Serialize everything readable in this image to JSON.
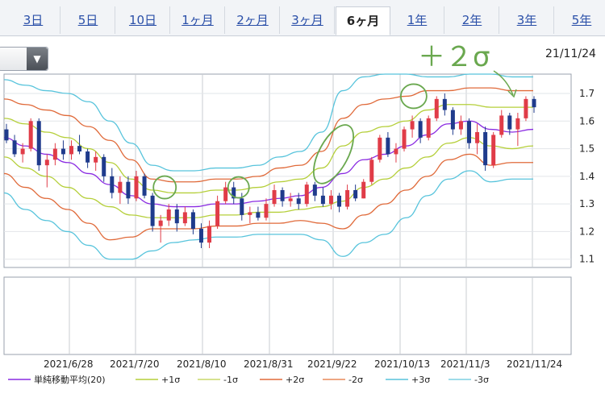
{
  "tabs": [
    {
      "label": "3日",
      "active": false
    },
    {
      "label": "5日",
      "active": false
    },
    {
      "label": "10日",
      "active": false
    },
    {
      "label": "1ヶ月",
      "active": false
    },
    {
      "label": "2ヶ月",
      "active": false
    },
    {
      "label": "3ヶ月",
      "active": false
    },
    {
      "label": "6ヶ月",
      "active": true
    },
    {
      "label": "1年",
      "active": false
    },
    {
      "label": "2年",
      "active": false
    },
    {
      "label": "3年",
      "active": false
    },
    {
      "label": "5年",
      "active": false
    }
  ],
  "header": {
    "date": "21/11/24"
  },
  "annotation": {
    "text": "＋２σ",
    "color": "#6aa84f"
  },
  "chart_data": {
    "type": "line",
    "description": "6-month daily candlestick price chart with 20-day SMA and Bollinger bands (±1σ, ±2σ, ±3σ)",
    "ylim": [
      1.07,
      1.77
    ],
    "y_ticks": [
      1.1,
      1.2,
      1.3,
      1.4,
      1.5,
      1.6,
      1.7
    ],
    "x_ticks": [
      "2021/6/28",
      "2021/7/20",
      "2021/8/10",
      "2021/8/31",
      "2021/9/22",
      "2021/10/13",
      "2021/11/3",
      "2021/11/24"
    ],
    "grid": true,
    "legend": "bottom",
    "colors": {
      "sma": "#8a2be2",
      "sigma1": "#b5cf3a",
      "sigma2": "#e06a3a",
      "sigma3": "#58c4dc",
      "up": "#e03c48",
      "down": "#1f3b8c",
      "highlight": "#6aa84f"
    },
    "series": [
      {
        "name": "単純移動平均(20)",
        "key": "sma",
        "values": [
          1.54,
          1.51,
          1.48,
          1.45,
          1.41,
          1.37,
          1.33,
          1.3,
          1.29,
          1.29,
          1.3,
          1.3,
          1.31,
          1.32,
          1.33,
          1.36,
          1.41,
          1.46,
          1.48,
          1.51,
          1.55,
          1.59,
          1.6,
          1.57,
          1.56,
          1.57
        ]
      },
      {
        "name": "+1σ",
        "key": "p1",
        "values": [
          1.61,
          1.59,
          1.56,
          1.54,
          1.5,
          1.45,
          1.39,
          1.35,
          1.34,
          1.34,
          1.35,
          1.35,
          1.36,
          1.38,
          1.39,
          1.43,
          1.51,
          1.56,
          1.58,
          1.6,
          1.64,
          1.66,
          1.66,
          1.65,
          1.65,
          1.65
        ]
      },
      {
        "name": "-1σ",
        "key": "m1",
        "values": [
          1.47,
          1.43,
          1.4,
          1.36,
          1.32,
          1.29,
          1.26,
          1.25,
          1.25,
          1.25,
          1.26,
          1.26,
          1.27,
          1.27,
          1.28,
          1.29,
          1.31,
          1.36,
          1.39,
          1.43,
          1.47,
          1.52,
          1.54,
          1.51,
          1.5,
          1.51
        ]
      },
      {
        "name": "+2σ",
        "key": "p2",
        "values": [
          1.68,
          1.66,
          1.64,
          1.62,
          1.58,
          1.53,
          1.46,
          1.39,
          1.38,
          1.38,
          1.39,
          1.39,
          1.4,
          1.43,
          1.44,
          1.49,
          1.61,
          1.66,
          1.68,
          1.69,
          1.71,
          1.71,
          1.72,
          1.72,
          1.71,
          1.71
        ]
      },
      {
        "name": "-2σ",
        "key": "m2",
        "values": [
          1.41,
          1.36,
          1.32,
          1.28,
          1.23,
          1.17,
          1.18,
          1.21,
          1.21,
          1.21,
          1.22,
          1.22,
          1.23,
          1.23,
          1.24,
          1.23,
          1.21,
          1.26,
          1.3,
          1.35,
          1.4,
          1.46,
          1.48,
          1.44,
          1.45,
          1.45
        ]
      },
      {
        "name": "+3σ",
        "key": "p3",
        "values": [
          1.75,
          1.73,
          1.71,
          1.7,
          1.67,
          1.6,
          1.52,
          1.44,
          1.42,
          1.42,
          1.43,
          1.43,
          1.44,
          1.47,
          1.49,
          1.56,
          1.71,
          1.76,
          1.77,
          1.77,
          1.76,
          1.76,
          1.77,
          1.77,
          1.76,
          1.76
        ]
      },
      {
        "name": "-3σ",
        "key": "m3",
        "values": [
          1.34,
          1.28,
          1.24,
          1.2,
          1.15,
          1.1,
          1.1,
          1.13,
          1.16,
          1.17,
          1.18,
          1.18,
          1.19,
          1.19,
          1.19,
          1.17,
          1.11,
          1.16,
          1.19,
          1.25,
          1.33,
          1.39,
          1.42,
          1.38,
          1.39,
          1.39
        ]
      }
    ],
    "candles": [
      {
        "o": 1.57,
        "h": 1.59,
        "l": 1.52,
        "c": 1.53
      },
      {
        "o": 1.53,
        "h": 1.55,
        "l": 1.47,
        "c": 1.48
      },
      {
        "o": 1.48,
        "h": 1.52,
        "l": 1.45,
        "c": 1.5
      },
      {
        "o": 1.5,
        "h": 1.61,
        "l": 1.49,
        "c": 1.6
      },
      {
        "o": 1.6,
        "h": 1.61,
        "l": 1.42,
        "c": 1.44
      },
      {
        "o": 1.44,
        "h": 1.48,
        "l": 1.36,
        "c": 1.46
      },
      {
        "o": 1.46,
        "h": 1.52,
        "l": 1.44,
        "c": 1.5
      },
      {
        "o": 1.5,
        "h": 1.53,
        "l": 1.46,
        "c": 1.48
      },
      {
        "o": 1.48,
        "h": 1.53,
        "l": 1.46,
        "c": 1.51
      },
      {
        "o": 1.51,
        "h": 1.55,
        "l": 1.48,
        "c": 1.49
      },
      {
        "o": 1.49,
        "h": 1.5,
        "l": 1.43,
        "c": 1.45
      },
      {
        "o": 1.45,
        "h": 1.49,
        "l": 1.42,
        "c": 1.47
      },
      {
        "o": 1.47,
        "h": 1.48,
        "l": 1.38,
        "c": 1.4
      },
      {
        "o": 1.4,
        "h": 1.43,
        "l": 1.32,
        "c": 1.34
      },
      {
        "o": 1.34,
        "h": 1.4,
        "l": 1.3,
        "c": 1.38
      },
      {
        "o": 1.38,
        "h": 1.4,
        "l": 1.3,
        "c": 1.32
      },
      {
        "o": 1.32,
        "h": 1.42,
        "l": 1.31,
        "c": 1.4
      },
      {
        "o": 1.4,
        "h": 1.41,
        "l": 1.32,
        "c": 1.33
      },
      {
        "o": 1.33,
        "h": 1.34,
        "l": 1.2,
        "c": 1.22
      },
      {
        "o": 1.22,
        "h": 1.26,
        "l": 1.16,
        "c": 1.24
      },
      {
        "o": 1.24,
        "h": 1.3,
        "l": 1.22,
        "c": 1.28
      },
      {
        "o": 1.28,
        "h": 1.3,
        "l": 1.2,
        "c": 1.23
      },
      {
        "o": 1.23,
        "h": 1.29,
        "l": 1.22,
        "c": 1.27
      },
      {
        "o": 1.27,
        "h": 1.28,
        "l": 1.19,
        "c": 1.21
      },
      {
        "o": 1.21,
        "h": 1.23,
        "l": 1.14,
        "c": 1.16
      },
      {
        "o": 1.16,
        "h": 1.24,
        "l": 1.14,
        "c": 1.22
      },
      {
        "o": 1.22,
        "h": 1.33,
        "l": 1.21,
        "c": 1.31
      },
      {
        "o": 1.31,
        "h": 1.38,
        "l": 1.3,
        "c": 1.36
      },
      {
        "o": 1.36,
        "h": 1.38,
        "l": 1.3,
        "c": 1.32
      },
      {
        "o": 1.32,
        "h": 1.34,
        "l": 1.24,
        "c": 1.26
      },
      {
        "o": 1.26,
        "h": 1.29,
        "l": 1.23,
        "c": 1.27
      },
      {
        "o": 1.27,
        "h": 1.29,
        "l": 1.24,
        "c": 1.25
      },
      {
        "o": 1.25,
        "h": 1.32,
        "l": 1.24,
        "c": 1.3
      },
      {
        "o": 1.3,
        "h": 1.37,
        "l": 1.29,
        "c": 1.35
      },
      {
        "o": 1.35,
        "h": 1.36,
        "l": 1.29,
        "c": 1.31
      },
      {
        "o": 1.31,
        "h": 1.34,
        "l": 1.29,
        "c": 1.32
      },
      {
        "o": 1.32,
        "h": 1.34,
        "l": 1.28,
        "c": 1.3
      },
      {
        "o": 1.3,
        "h": 1.38,
        "l": 1.29,
        "c": 1.37
      },
      {
        "o": 1.37,
        "h": 1.38,
        "l": 1.31,
        "c": 1.33
      },
      {
        "o": 1.33,
        "h": 1.36,
        "l": 1.29,
        "c": 1.3
      },
      {
        "o": 1.3,
        "h": 1.35,
        "l": 1.28,
        "c": 1.33
      },
      {
        "o": 1.33,
        "h": 1.34,
        "l": 1.27,
        "c": 1.29
      },
      {
        "o": 1.29,
        "h": 1.37,
        "l": 1.28,
        "c": 1.35
      },
      {
        "o": 1.35,
        "h": 1.37,
        "l": 1.31,
        "c": 1.32
      },
      {
        "o": 1.32,
        "h": 1.39,
        "l": 1.32,
        "c": 1.38
      },
      {
        "o": 1.38,
        "h": 1.47,
        "l": 1.37,
        "c": 1.46
      },
      {
        "o": 1.46,
        "h": 1.55,
        "l": 1.45,
        "c": 1.54
      },
      {
        "o": 1.54,
        "h": 1.56,
        "l": 1.47,
        "c": 1.48
      },
      {
        "o": 1.48,
        "h": 1.52,
        "l": 1.45,
        "c": 1.5
      },
      {
        "o": 1.5,
        "h": 1.58,
        "l": 1.49,
        "c": 1.57
      },
      {
        "o": 1.57,
        "h": 1.62,
        "l": 1.54,
        "c": 1.6
      },
      {
        "o": 1.6,
        "h": 1.61,
        "l": 1.52,
        "c": 1.54
      },
      {
        "o": 1.54,
        "h": 1.62,
        "l": 1.53,
        "c": 1.61
      },
      {
        "o": 1.61,
        "h": 1.69,
        "l": 1.6,
        "c": 1.68
      },
      {
        "o": 1.68,
        "h": 1.7,
        "l": 1.62,
        "c": 1.64
      },
      {
        "o": 1.64,
        "h": 1.65,
        "l": 1.55,
        "c": 1.57
      },
      {
        "o": 1.57,
        "h": 1.62,
        "l": 1.55,
        "c": 1.6
      },
      {
        "o": 1.6,
        "h": 1.61,
        "l": 1.5,
        "c": 1.52
      },
      {
        "o": 1.52,
        "h": 1.59,
        "l": 1.48,
        "c": 1.56
      },
      {
        "o": 1.56,
        "h": 1.58,
        "l": 1.42,
        "c": 1.44
      },
      {
        "o": 1.44,
        "h": 1.56,
        "l": 1.43,
        "c": 1.55
      },
      {
        "o": 1.55,
        "h": 1.64,
        "l": 1.54,
        "c": 1.62
      },
      {
        "o": 1.62,
        "h": 1.63,
        "l": 1.55,
        "c": 1.57
      },
      {
        "o": 1.57,
        "h": 1.63,
        "l": 1.51,
        "c": 1.61
      },
      {
        "o": 1.61,
        "h": 1.69,
        "l": 1.6,
        "c": 1.68
      },
      {
        "o": 1.68,
        "h": 1.69,
        "l": 1.63,
        "c": 1.65
      }
    ],
    "highlights": [
      {
        "x_index": 7.5,
        "y": 1.36,
        "rx": 14,
        "ry": 14
      },
      {
        "x_index": 11.0,
        "y": 1.36,
        "rx": 13,
        "ry": 13
      },
      {
        "x_index": 15.5,
        "y": 1.48,
        "rx": 18,
        "ry": 40
      },
      {
        "x_index": 19.3,
        "y": 1.69,
        "rx": 16,
        "ry": 15
      }
    ],
    "legend_items": [
      {
        "label": "単純移動平均(20)",
        "key": "sma"
      },
      {
        "label": "+1σ",
        "key": "sigma1"
      },
      {
        "label": "-1σ",
        "key": "sigma1b"
      },
      {
        "label": "+2σ",
        "key": "sigma2"
      },
      {
        "label": "-2σ",
        "key": "sigma2b"
      },
      {
        "label": "+3σ",
        "key": "sigma3"
      },
      {
        "label": "-3σ",
        "key": "sigma3b"
      }
    ]
  }
}
